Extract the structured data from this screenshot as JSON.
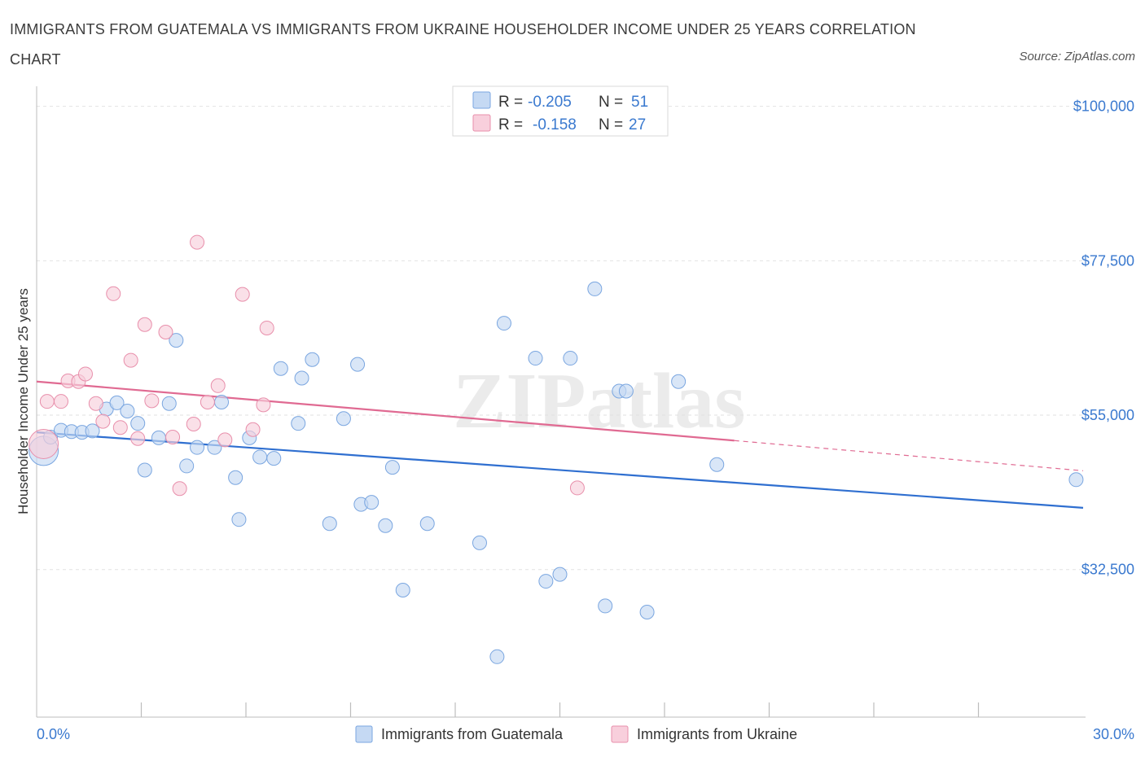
{
  "title": "IMMIGRANTS FROM GUATEMALA VS IMMIGRANTS FROM UKRAINE HOUSEHOLDER INCOME UNDER 25 YEARS CORRELATION CHART",
  "source": "Source: ZipAtlas.com",
  "watermark": "ZIPatlas",
  "colors": {
    "guatemala_fill": "#c5d9f3",
    "guatemala_stroke": "#7aa6e0",
    "guatemala_line": "#2f6fd0",
    "ukraine_fill": "#f8cfdc",
    "ukraine_stroke": "#e88fab",
    "ukraine_line": "#e06a92",
    "tick_text": "#3a79cf",
    "grid": "#e2e2e2"
  },
  "legend": {
    "rows": [
      {
        "r_label": "R =",
        "r_value": "-0.205",
        "n_label": "N =",
        "n_value": "51"
      },
      {
        "r_label": "R =",
        "r_value": "-0.158",
        "n_label": "N =",
        "n_value": "27"
      }
    ]
  },
  "chart_data": {
    "type": "scatter",
    "title": "IMMIGRANTS FROM GUATEMALA VS IMMIGRANTS FROM UKRAINE HOUSEHOLDER INCOME UNDER 25 YEARS CORRELATION CHART",
    "xlabel": "",
    "ylabel": "Householder Income Under 25 years",
    "xlim": [
      0,
      30
    ],
    "ylim": [
      11000,
      101500
    ],
    "x_tick_labels": [
      "0.0%",
      "30.0%"
    ],
    "y_ticks": [
      32500,
      55000,
      77500,
      100000
    ],
    "y_tick_labels": [
      "$32,500",
      "$55,000",
      "$77,500",
      "$100,000"
    ],
    "grid": true,
    "legend_position": "top-center",
    "series": [
      {
        "name": "Immigrants from Guatemala",
        "r": -0.205,
        "n": 51,
        "trend": {
          "x": [
            0,
            30
          ],
          "y": [
            52500,
            41500
          ]
        },
        "points": [
          {
            "x": 0.2,
            "y": 49800,
            "big": true
          },
          {
            "x": 0.4,
            "y": 51800
          },
          {
            "x": 0.7,
            "y": 52800
          },
          {
            "x": 1.0,
            "y": 52600
          },
          {
            "x": 1.3,
            "y": 52500
          },
          {
            "x": 1.6,
            "y": 52700
          },
          {
            "x": 2.0,
            "y": 55900
          },
          {
            "x": 2.3,
            "y": 56800
          },
          {
            "x": 2.6,
            "y": 55600
          },
          {
            "x": 2.9,
            "y": 53800
          },
          {
            "x": 3.1,
            "y": 47000
          },
          {
            "x": 3.5,
            "y": 51700
          },
          {
            "x": 3.8,
            "y": 56700
          },
          {
            "x": 4.0,
            "y": 65900
          },
          {
            "x": 4.3,
            "y": 47600
          },
          {
            "x": 4.6,
            "y": 50300
          },
          {
            "x": 5.1,
            "y": 50300
          },
          {
            "x": 5.3,
            "y": 56900
          },
          {
            "x": 5.7,
            "y": 45900
          },
          {
            "x": 5.8,
            "y": 39800
          },
          {
            "x": 6.1,
            "y": 51700
          },
          {
            "x": 6.4,
            "y": 48900
          },
          {
            "x": 6.8,
            "y": 48700
          },
          {
            "x": 7.0,
            "y": 61800
          },
          {
            "x": 7.5,
            "y": 53800
          },
          {
            "x": 7.6,
            "y": 60400
          },
          {
            "x": 7.9,
            "y": 63100
          },
          {
            "x": 8.4,
            "y": 39200
          },
          {
            "x": 8.8,
            "y": 54500
          },
          {
            "x": 9.2,
            "y": 62400
          },
          {
            "x": 9.3,
            "y": 42000
          },
          {
            "x": 9.6,
            "y": 42300
          },
          {
            "x": 10.0,
            "y": 38900
          },
          {
            "x": 10.2,
            "y": 47400
          },
          {
            "x": 10.5,
            "y": 29500
          },
          {
            "x": 11.2,
            "y": 39200
          },
          {
            "x": 12.7,
            "y": 36400
          },
          {
            "x": 13.2,
            "y": 19800
          },
          {
            "x": 13.4,
            "y": 68400
          },
          {
            "x": 14.3,
            "y": 63300
          },
          {
            "x": 14.6,
            "y": 30800
          },
          {
            "x": 15.0,
            "y": 31800
          },
          {
            "x": 15.3,
            "y": 63300
          },
          {
            "x": 16.0,
            "y": 73400
          },
          {
            "x": 16.3,
            "y": 27200
          },
          {
            "x": 16.7,
            "y": 58500
          },
          {
            "x": 16.9,
            "y": 58500
          },
          {
            "x": 17.5,
            "y": 26300
          },
          {
            "x": 18.4,
            "y": 59900
          },
          {
            "x": 19.5,
            "y": 47800
          },
          {
            "x": 29.8,
            "y": 45600
          }
        ]
      },
      {
        "name": "Immigrants from Ukraine",
        "r": -0.158,
        "n": 27,
        "trend": {
          "x": [
            0,
            20
          ],
          "y": [
            59900,
            51300
          ]
        },
        "trend_dashed": {
          "x": [
            20,
            30
          ],
          "y": [
            51300,
            46900
          ]
        },
        "points": [
          {
            "x": 0.2,
            "y": 50800,
            "big": true
          },
          {
            "x": 0.3,
            "y": 57000
          },
          {
            "x": 0.7,
            "y": 57000
          },
          {
            "x": 0.9,
            "y": 60000
          },
          {
            "x": 1.2,
            "y": 59900
          },
          {
            "x": 1.4,
            "y": 61000
          },
          {
            "x": 1.7,
            "y": 56700
          },
          {
            "x": 1.9,
            "y": 54100
          },
          {
            "x": 2.2,
            "y": 72700
          },
          {
            "x": 2.4,
            "y": 53200
          },
          {
            "x": 2.7,
            "y": 63000
          },
          {
            "x": 2.9,
            "y": 51600
          },
          {
            "x": 3.1,
            "y": 68200
          },
          {
            "x": 3.3,
            "y": 57100
          },
          {
            "x": 3.7,
            "y": 67100
          },
          {
            "x": 3.9,
            "y": 51800
          },
          {
            "x": 4.1,
            "y": 44300
          },
          {
            "x": 4.5,
            "y": 53700
          },
          {
            "x": 4.6,
            "y": 80200
          },
          {
            "x": 4.9,
            "y": 56900
          },
          {
            "x": 5.2,
            "y": 59300
          },
          {
            "x": 5.4,
            "y": 51400
          },
          {
            "x": 5.9,
            "y": 72600
          },
          {
            "x": 6.2,
            "y": 52900
          },
          {
            "x": 6.5,
            "y": 56500
          },
          {
            "x": 6.6,
            "y": 67700
          },
          {
            "x": 15.5,
            "y": 44400
          }
        ]
      }
    ]
  }
}
